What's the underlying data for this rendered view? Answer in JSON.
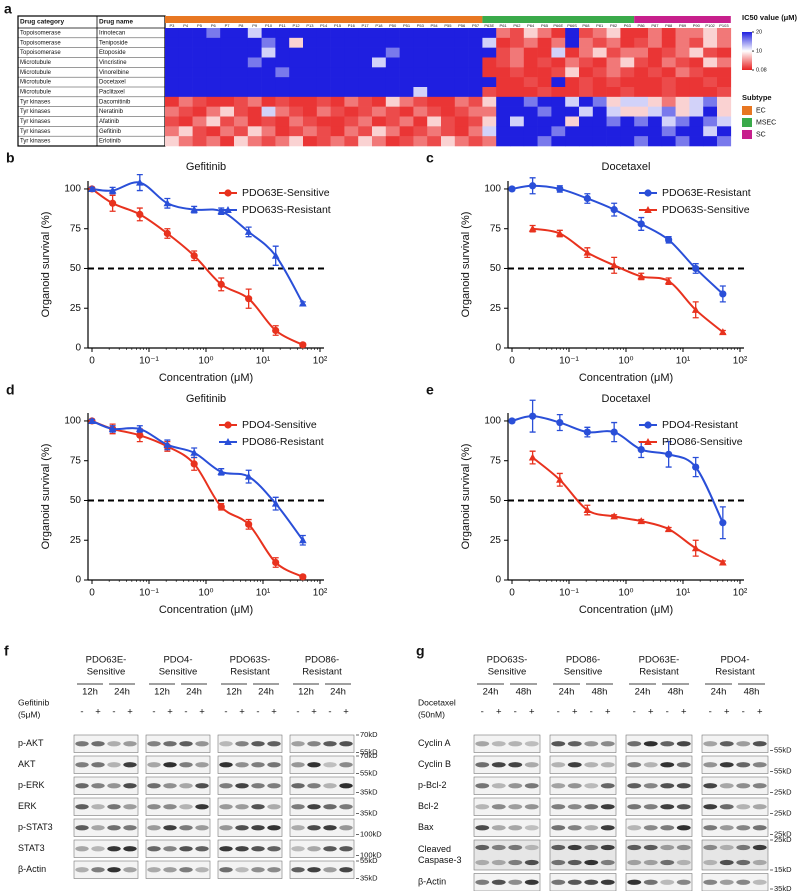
{
  "heatmap": {
    "label": "a",
    "headers": [
      "Drug category",
      "Drug name"
    ],
    "categories": [
      "Topoisomerase",
      "Topoisomerase",
      "Topoisomerase",
      "Microtubule",
      "Microtubule",
      "Microtubule",
      "Microtubule",
      "Tyr kinases",
      "Tyr kinases",
      "Tyr kinases",
      "Tyr kinases",
      "Tyr kinases"
    ],
    "drugs": [
      "Irinotecan",
      "Teniposide",
      "Etoposide",
      "Vincristine",
      "Vinorelbine",
      "Docetaxel",
      "Paclitaxel",
      "Dacomitinib",
      "Neratinib",
      "Afatinib",
      "Gefitinib",
      "Erlotinib"
    ],
    "groups": [
      {
        "name": "EC",
        "color": "#e87722",
        "samples": [
          "P3",
          "P4",
          "P5",
          "P6",
          "P7",
          "P8",
          "P9",
          "P10",
          "P11",
          "P12",
          "P13",
          "P14",
          "P15",
          "P16",
          "P17",
          "P18",
          "P50",
          "P51",
          "P53",
          "P54",
          "P55",
          "P56",
          "P57"
        ]
      },
      {
        "name": "MSEC",
        "color": "#3aaa4a",
        "samples": [
          "P63E",
          "P61",
          "P62",
          "P64",
          "P65",
          "P66E",
          "P66S",
          "P68",
          "P81",
          "P82",
          "P63"
        ]
      },
      {
        "name": "SC",
        "color": "#c71f8c",
        "samples": [
          "P86",
          "P87",
          "P88",
          "P89",
          "P90",
          "P102",
          "P103"
        ]
      }
    ],
    "values": [
      [
        20,
        20,
        20,
        16,
        20,
        20,
        12,
        20,
        20,
        20,
        20,
        20,
        20,
        20,
        20,
        20,
        20,
        20,
        20,
        20,
        20,
        20,
        20,
        20,
        4,
        2,
        8,
        4,
        1,
        20,
        2,
        4,
        8,
        1,
        1,
        4,
        1,
        4,
        4,
        8,
        4
      ],
      [
        20,
        20,
        20,
        20,
        20,
        20,
        20,
        16,
        20,
        8,
        20,
        20,
        20,
        20,
        20,
        20,
        20,
        20,
        20,
        20,
        20,
        20,
        20,
        12,
        1,
        2,
        4,
        1,
        4,
        20,
        4,
        2,
        4,
        1,
        2,
        4,
        1,
        4,
        2,
        8,
        4
      ],
      [
        20,
        20,
        20,
        20,
        20,
        20,
        20,
        12,
        20,
        20,
        20,
        20,
        20,
        20,
        20,
        20,
        16,
        20,
        20,
        20,
        20,
        20,
        20,
        20,
        2,
        4,
        1,
        1,
        12,
        1,
        4,
        8,
        2,
        4,
        4,
        1,
        2,
        4,
        8,
        2,
        1
      ],
      [
        20,
        20,
        20,
        20,
        20,
        20,
        16,
        20,
        20,
        20,
        20,
        20,
        20,
        20,
        20,
        12,
        20,
        20,
        20,
        20,
        20,
        20,
        20,
        1,
        2,
        4,
        1,
        2,
        1,
        4,
        2,
        1,
        4,
        8,
        2,
        1,
        4,
        2,
        1,
        8,
        4
      ],
      [
        20,
        20,
        20,
        20,
        20,
        20,
        20,
        20,
        16,
        20,
        20,
        20,
        20,
        20,
        20,
        20,
        20,
        20,
        20,
        20,
        20,
        20,
        20,
        1,
        1,
        2,
        1,
        1,
        2,
        8,
        1,
        2,
        4,
        2,
        1,
        2,
        1,
        4,
        2,
        1,
        1
      ],
      [
        20,
        20,
        20,
        20,
        20,
        20,
        20,
        20,
        20,
        20,
        20,
        20,
        20,
        20,
        20,
        20,
        20,
        20,
        20,
        20,
        20,
        20,
        20,
        20,
        1,
        1,
        2,
        1,
        20,
        1,
        2,
        1,
        2,
        1,
        1,
        1,
        2,
        1,
        1,
        2,
        1
      ],
      [
        20,
        20,
        20,
        20,
        20,
        20,
        20,
        20,
        20,
        20,
        20,
        20,
        20,
        20,
        20,
        20,
        20,
        20,
        12,
        20,
        20,
        20,
        20,
        2,
        1,
        1,
        1,
        2,
        1,
        1,
        2,
        1,
        1,
        2,
        1,
        1,
        2,
        1,
        1,
        1,
        2
      ],
      [
        1,
        4,
        2,
        1,
        1,
        2,
        4,
        1,
        2,
        1,
        1,
        2,
        1,
        4,
        2,
        1,
        8,
        4,
        2,
        1,
        1,
        4,
        2,
        8,
        20,
        20,
        16,
        20,
        20,
        12,
        20,
        16,
        8,
        12,
        12,
        8,
        4,
        8,
        12,
        16,
        8
      ],
      [
        4,
        2,
        1,
        4,
        8,
        2,
        1,
        12,
        4,
        2,
        1,
        4,
        2,
        1,
        2,
        4,
        2,
        1,
        4,
        2,
        1,
        2,
        4,
        4,
        20,
        20,
        20,
        16,
        20,
        20,
        12,
        20,
        12,
        8,
        8,
        12,
        16,
        8,
        12,
        20,
        8
      ],
      [
        2,
        1,
        4,
        8,
        2,
        4,
        1,
        2,
        1,
        4,
        2,
        1,
        1,
        2,
        4,
        1,
        2,
        4,
        1,
        8,
        2,
        1,
        2,
        8,
        20,
        12,
        20,
        20,
        20,
        8,
        20,
        20,
        16,
        20,
        16,
        20,
        12,
        16,
        20,
        16,
        12
      ],
      [
        4,
        8,
        2,
        1,
        4,
        2,
        8,
        4,
        1,
        2,
        4,
        2,
        1,
        4,
        2,
        8,
        4,
        1,
        2,
        4,
        2,
        1,
        4,
        12,
        20,
        20,
        20,
        20,
        16,
        20,
        20,
        20,
        20,
        20,
        20,
        20,
        16,
        20,
        20,
        12,
        20
      ],
      [
        8,
        4,
        2,
        4,
        1,
        8,
        4,
        2,
        4,
        8,
        1,
        2,
        4,
        2,
        8,
        4,
        1,
        2,
        4,
        2,
        8,
        4,
        2,
        4,
        20,
        20,
        20,
        16,
        20,
        20,
        20,
        20,
        20,
        20,
        16,
        20,
        20,
        16,
        20,
        20,
        16
      ]
    ],
    "colorbar": {
      "title": "IC50 value (μM)",
      "ticks": [
        20,
        10,
        0.08
      ],
      "colors": [
        "#1f1fe0",
        "#ffffff",
        "#e82020"
      ]
    },
    "legend_title": "Subtype"
  },
  "chart_data": [
    {
      "type": "line",
      "label": "b",
      "title": "Gefitinib",
      "xlabel": "Concentration (μM)",
      "ylabel": "Organoid survival (%)",
      "x": [
        0,
        0.023,
        0.069,
        0.21,
        0.62,
        1.85,
        5.6,
        16.7,
        50
      ],
      "xscale": "log",
      "xlim": [
        0.01,
        100
      ],
      "xticks": [
        0,
        {
          "value": 0.1,
          "label": "10⁻¹"
        },
        {
          "value": 1,
          "label": "10⁰"
        },
        {
          "value": 10,
          "label": "10¹"
        },
        {
          "value": 100,
          "label": "10²"
        }
      ],
      "ylim": [
        0,
        105
      ],
      "yticks": [
        0,
        25,
        50,
        75,
        100
      ],
      "hline": 50,
      "legend": "upper right",
      "series": [
        {
          "name": "PDO63E-Sensitive",
          "color": "#e8321e",
          "marker": "circle",
          "values": [
            100,
            91,
            84,
            72,
            58,
            40,
            31,
            11,
            2
          ],
          "errors": [
            1,
            5,
            4,
            3,
            3,
            4,
            6,
            3,
            1
          ]
        },
        {
          "name": "PDO63S-Resistant",
          "color": "#2a4fd8",
          "marker": "triangle",
          "values": [
            100,
            99,
            104,
            91,
            87,
            86,
            73,
            58,
            28
          ],
          "errors": [
            1,
            2,
            5,
            3,
            2,
            2,
            3,
            6,
            1
          ]
        }
      ]
    },
    {
      "type": "line",
      "label": "c",
      "title": "Docetaxel",
      "xlabel": "Concentration (μM)",
      "ylabel": "Organoid survival (%)",
      "x": [
        0,
        0.023,
        0.069,
        0.21,
        0.62,
        1.85,
        5.6,
        16.7,
        50
      ],
      "xscale": "log",
      "xlim": [
        0.01,
        100
      ],
      "xticks": [
        0,
        {
          "value": 0.1,
          "label": "10⁻¹"
        },
        {
          "value": 1,
          "label": "10⁰"
        },
        {
          "value": 10,
          "label": "10¹"
        },
        {
          "value": 100,
          "label": "10²"
        }
      ],
      "ylim": [
        0,
        105
      ],
      "yticks": [
        0,
        25,
        50,
        75,
        100
      ],
      "hline": 50,
      "legend": "upper right",
      "series": [
        {
          "name": "PDO63E-Resistant",
          "color": "#2a4fd8",
          "marker": "circle",
          "values": [
            100,
            102,
            100,
            94,
            87,
            78,
            68,
            50,
            34
          ],
          "errors": [
            1,
            5,
            2,
            3,
            4,
            4,
            2,
            3,
            5
          ]
        },
        {
          "name": "PDO63S-Sensitive",
          "color": "#e8321e",
          "marker": "triangle",
          "values": [
            null,
            75,
            72,
            60,
            52,
            45,
            42,
            24,
            10
          ],
          "errors": [
            null,
            2,
            2,
            3,
            5,
            2,
            2,
            5,
            1
          ]
        }
      ]
    },
    {
      "type": "line",
      "label": "d",
      "title": "Gefitinib",
      "xlabel": "Concentration (μM)",
      "ylabel": "Organoid survival (%)",
      "x": [
        0,
        0.023,
        0.069,
        0.21,
        0.62,
        1.85,
        5.6,
        16.7,
        50
      ],
      "xscale": "log",
      "xlim": [
        0.01,
        100
      ],
      "xticks": [
        0,
        {
          "value": 0.1,
          "label": "10⁻¹"
        },
        {
          "value": 1,
          "label": "10⁰"
        },
        {
          "value": 10,
          "label": "10¹"
        },
        {
          "value": 100,
          "label": "10²"
        }
      ],
      "ylim": [
        0,
        105
      ],
      "yticks": [
        0,
        25,
        50,
        75,
        100
      ],
      "hline": 50,
      "legend": "upper right",
      "series": [
        {
          "name": "PDO4-Sensitive",
          "color": "#e8321e",
          "marker": "circle",
          "values": [
            100,
            95,
            91,
            84,
            73,
            46,
            35,
            11,
            2
          ],
          "errors": [
            1,
            3,
            4,
            3,
            4,
            2,
            3,
            3,
            1
          ]
        },
        {
          "name": "PDO86-Resistant",
          "color": "#2a4fd8",
          "marker": "triangle",
          "values": [
            100,
            95,
            95,
            85,
            80,
            68,
            65,
            48,
            25
          ],
          "errors": [
            1,
            2,
            2,
            3,
            3,
            2,
            4,
            4,
            3
          ]
        }
      ]
    },
    {
      "type": "line",
      "label": "e",
      "title": "Docetaxel",
      "xlabel": "Concentration (μM)",
      "ylabel": "Organoid survival (%)",
      "x": [
        0,
        0.023,
        0.069,
        0.21,
        0.62,
        1.85,
        5.6,
        16.7,
        50
      ],
      "xscale": "log",
      "xlim": [
        0.01,
        100
      ],
      "xticks": [
        0,
        {
          "value": 0.1,
          "label": "10⁻¹"
        },
        {
          "value": 1,
          "label": "10⁰"
        },
        {
          "value": 10,
          "label": "10¹"
        },
        {
          "value": 100,
          "label": "10²"
        }
      ],
      "ylim": [
        0,
        105
      ],
      "yticks": [
        0,
        25,
        50,
        75,
        100
      ],
      "hline": 50,
      "legend": "upper right",
      "series": [
        {
          "name": "PDO4-Resistant",
          "color": "#2a4fd8",
          "marker": "circle",
          "values": [
            100,
            103,
            99,
            93,
            93,
            82,
            79,
            71,
            36
          ],
          "errors": [
            1,
            10,
            5,
            3,
            6,
            5,
            8,
            6,
            10
          ]
        },
        {
          "name": "PDO86-Sensitive",
          "color": "#e8321e",
          "marker": "triangle",
          "values": [
            null,
            77,
            63,
            44,
            40,
            37,
            32,
            20,
            11
          ],
          "errors": [
            null,
            4,
            4,
            3,
            1,
            1,
            1,
            5,
            1
          ]
        }
      ]
    }
  ],
  "blots": [
    {
      "label": "f",
      "treatment": [
        "Gefitinib",
        "(5μM)"
      ],
      "times": [
        "12h",
        "24h"
      ],
      "signs": [
        "-",
        "+"
      ],
      "groups": [
        [
          "PDO63E-",
          "Sensitive"
        ],
        [
          "PDO4-",
          "Sensitive"
        ],
        [
          "PDO63S-",
          "Resistant"
        ],
        [
          "PDO86-",
          "Resistant"
        ]
      ],
      "rows": [
        {
          "name": [
            "p-AKT"
          ],
          "markers": [
            "70kD",
            "55kD"
          ]
        },
        {
          "name": [
            "AKT"
          ],
          "markers": [
            "70kD",
            "55kD"
          ]
        },
        {
          "name": [
            "p-ERK"
          ],
          "markers": [
            "35kD"
          ]
        },
        {
          "name": [
            "ERK"
          ],
          "markers": [
            "35kD"
          ]
        },
        {
          "name": [
            "p-STAT3"
          ],
          "markers": [
            "100kD"
          ]
        },
        {
          "name": [
            "STAT3"
          ],
          "markers": [
            "100kD"
          ]
        },
        {
          "name": [
            "β-Actin"
          ],
          "markers": [
            "55kD",
            "35kD"
          ]
        }
      ]
    },
    {
      "label": "g",
      "treatment": [
        "Docetaxel",
        "(50nM)"
      ],
      "times": [
        "24h",
        "48h"
      ],
      "signs": [
        "-",
        "+"
      ],
      "groups": [
        [
          "PDO63S-",
          "Sensitive"
        ],
        [
          "PDO86-",
          "Sensitive"
        ],
        [
          "PDO63E-",
          "Resistant"
        ],
        [
          "PDO4-",
          "Resistant"
        ]
      ],
      "rows": [
        {
          "name": [
            "Cyclin A"
          ],
          "markers": [
            "55kD"
          ]
        },
        {
          "name": [
            "Cyclin B"
          ],
          "markers": [
            "55kD"
          ]
        },
        {
          "name": [
            "p-Bcl-2"
          ],
          "markers": [
            "25kD"
          ]
        },
        {
          "name": [
            "Bcl-2"
          ],
          "markers": [
            "25kD"
          ]
        },
        {
          "name": [
            "Bax"
          ],
          "markers": [
            "25kD"
          ]
        },
        {
          "name": [
            "Cleaved",
            "Caspase-3"
          ],
          "markers": [
            "25kD",
            "15kD"
          ]
        },
        {
          "name": [
            "β-Actin"
          ],
          "markers": [
            "35kD"
          ]
        }
      ]
    }
  ]
}
